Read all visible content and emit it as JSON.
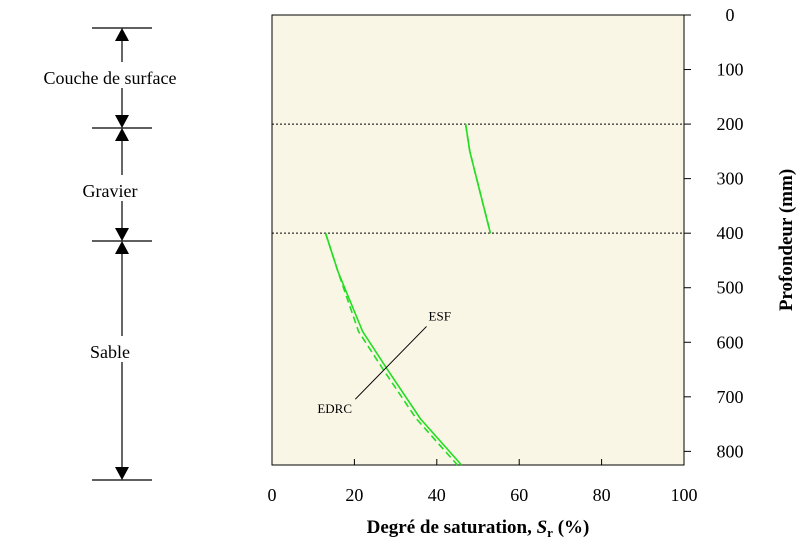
{
  "chart_data": {
    "type": "line",
    "xlabel": "Degré de saturation, ",
    "xlabel_symbol": "S",
    "xlabel_sub": "r",
    "xlabel_unit": " (%)",
    "ylabel": "Profondeur (mm)",
    "xlim": [
      0,
      100
    ],
    "ylim": [
      0,
      825
    ],
    "y_inverted": true,
    "y_axis_side": "right",
    "x_ticks": [
      "0",
      "20",
      "40",
      "60",
      "80",
      "100"
    ],
    "y_ticks": [
      "0",
      "100",
      "200",
      "300",
      "400",
      "500",
      "600",
      "700",
      "800"
    ],
    "plot_background": "#faf6e6",
    "series": [
      {
        "name": "ESF",
        "style": "solid",
        "color": "#22dd22",
        "segments": [
          [
            [
              47,
              200
            ],
            [
              48,
              250
            ],
            [
              50,
              310
            ],
            [
              53,
              400
            ]
          ],
          [
            [
              13,
              400
            ],
            [
              16,
              470
            ],
            [
              22,
              580
            ],
            [
              28,
              650
            ],
            [
              36,
              740
            ],
            [
              46,
              825
            ]
          ]
        ]
      },
      {
        "name": "EDRC",
        "style": "dashed",
        "color": "#22dd22",
        "segments": [
          [
            [
              47,
              200
            ],
            [
              48,
              250
            ],
            [
              50,
              310
            ],
            [
              53,
              400
            ]
          ],
          [
            [
              13,
              400
            ],
            [
              16,
              470
            ],
            [
              21,
              580
            ],
            [
              27,
              650
            ],
            [
              35,
              740
            ],
            [
              45,
              825
            ]
          ]
        ]
      }
    ],
    "layer_boundaries": [
      200,
      400
    ],
    "layers": [
      {
        "label": "Couche de surface",
        "from": 0,
        "to": 200
      },
      {
        "label": "Gravier",
        "from": 200,
        "to": 400
      },
      {
        "label": "Sable",
        "from": 400,
        "to": 825
      }
    ],
    "annotations": [
      {
        "text": "ESF",
        "x": 38,
        "y": 560
      },
      {
        "text": "EDRC",
        "x": 11,
        "y": 730
      }
    ]
  }
}
